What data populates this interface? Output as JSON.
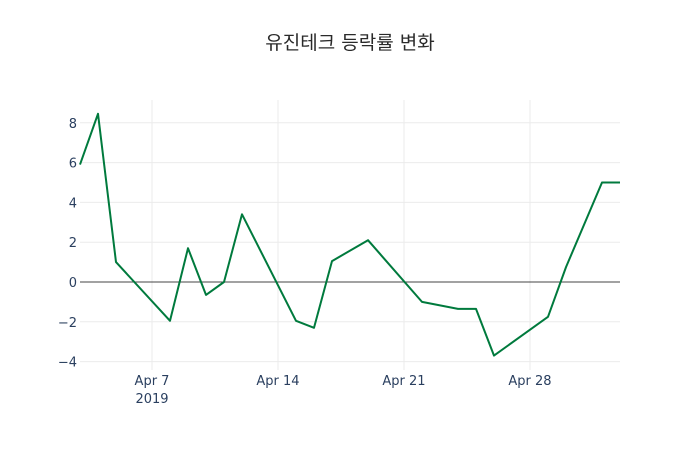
{
  "title": "유진테크 등락률 변화",
  "chart_data": {
    "type": "line",
    "title": "유진테크 등락률 변화",
    "xlabel": "",
    "ylabel": "",
    "x": [
      "2019-04-03",
      "2019-04-04",
      "2019-04-05",
      "2019-04-08",
      "2019-04-09",
      "2019-04-10",
      "2019-04-11",
      "2019-04-12",
      "2019-04-15",
      "2019-04-16",
      "2019-04-17",
      "2019-04-19",
      "2019-04-22",
      "2019-04-24",
      "2019-04-25",
      "2019-04-26",
      "2019-04-29",
      "2019-04-30",
      "2019-05-02",
      "2019-05-03"
    ],
    "series": [
      {
        "name": "등락률",
        "color": "#007a3d",
        "values": [
          5.9,
          8.45,
          1.0,
          -1.95,
          1.7,
          -0.65,
          0.0,
          3.4,
          -1.95,
          -2.3,
          1.05,
          2.1,
          -1.0,
          -1.35,
          -1.35,
          -3.7,
          -1.75,
          0.75,
          5.0,
          5.0
        ]
      }
    ],
    "ylim": [
      -4.4,
      9.0
    ],
    "yticks": [
      -4,
      -2,
      0,
      2,
      4,
      6,
      8
    ],
    "ytick_labels": [
      "−4",
      "−2",
      "0",
      "2",
      "4",
      "6",
      "8"
    ],
    "xticks": [
      {
        "date": "2019-04-07",
        "label": "Apr 7",
        "sublabel": "2019"
      },
      {
        "date": "2019-04-14",
        "label": "Apr 14",
        "sublabel": ""
      },
      {
        "date": "2019-04-21",
        "label": "Apr 21",
        "sublabel": ""
      },
      {
        "date": "2019-04-28",
        "label": "Apr 28",
        "sublabel": ""
      }
    ],
    "grid": true,
    "zero_line": true,
    "legend": "none"
  }
}
